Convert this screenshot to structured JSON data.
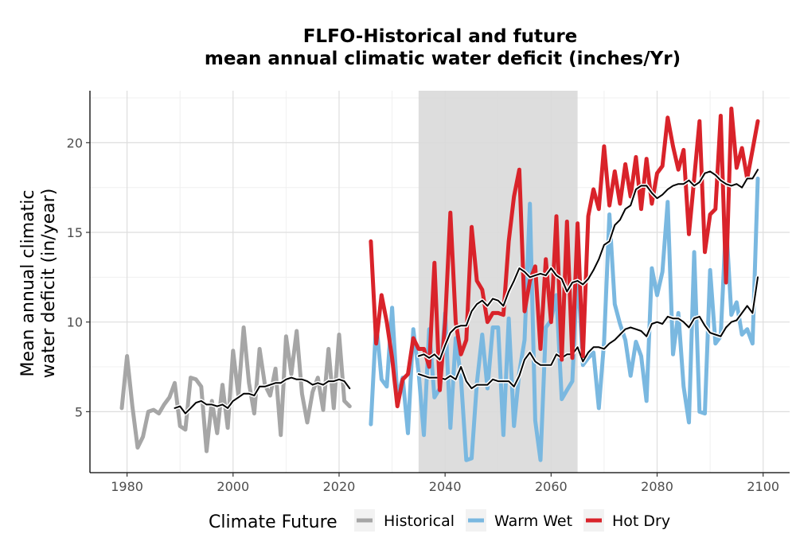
{
  "chart_data": {
    "type": "line",
    "title_lines": [
      "FLFO-Historical and future",
      "mean annual climatic water deficit (inches/Yr)"
    ],
    "ylabel_lines": [
      "Mean annual climatic",
      "water deficit (in/year)"
    ],
    "xlabel": "",
    "xlim": [
      1973,
      2105
    ],
    "ylim": [
      1.6,
      22.9
    ],
    "x_ticks": [
      1980,
      2000,
      2020,
      2040,
      2060,
      2080,
      2100
    ],
    "y_ticks": [
      5,
      10,
      15,
      20
    ],
    "grid": true,
    "shaded_period": [
      2035,
      2065
    ],
    "legend": {
      "title": "Climate Future",
      "position": "bottom",
      "items": [
        "Historical",
        "Warm Wet",
        "Hot Dry"
      ]
    },
    "series": [
      {
        "name": "Historical",
        "color": "#a6a6a6",
        "x": [
          1979,
          1980,
          1981,
          1982,
          1983,
          1984,
          1985,
          1986,
          1987,
          1988,
          1989,
          1990,
          1991,
          1992,
          1993,
          1994,
          1995,
          1996,
          1997,
          1998,
          1999,
          2000,
          2001,
          2002,
          2003,
          2004,
          2005,
          2006,
          2007,
          2008,
          2009,
          2010,
          2011,
          2012,
          2013,
          2014,
          2015,
          2016,
          2017,
          2018,
          2019,
          2020,
          2021,
          2022
        ],
        "values": [
          5.2,
          8.1,
          5.3,
          3.0,
          3.6,
          5.0,
          5.1,
          4.9,
          5.4,
          5.8,
          6.6,
          4.2,
          4.0,
          6.9,
          6.8,
          6.4,
          2.8,
          5.6,
          3.8,
          6.5,
          4.1,
          8.4,
          5.9,
          9.7,
          6.6,
          4.9,
          8.5,
          6.5,
          5.9,
          7.4,
          3.7,
          9.2,
          7.1,
          9.5,
          6.0,
          4.4,
          6.1,
          6.9,
          5.1,
          8.5,
          5.2,
          9.3,
          5.6,
          5.3
        ]
      },
      {
        "name": "Historical (rolling mean)",
        "color": "#000000",
        "x": [
          1989,
          1990,
          1991,
          1992,
          1993,
          1994,
          1995,
          1996,
          1997,
          1998,
          1999,
          2000,
          2001,
          2002,
          2003,
          2004,
          2005,
          2006,
          2007,
          2008,
          2009,
          2010,
          2011,
          2012,
          2013,
          2014,
          2015,
          2016,
          2017,
          2018,
          2019,
          2020,
          2021,
          2022
        ],
        "values": [
          5.2,
          5.3,
          4.9,
          5.2,
          5.5,
          5.6,
          5.4,
          5.4,
          5.3,
          5.4,
          5.2,
          5.6,
          5.8,
          6.0,
          6.0,
          5.9,
          6.4,
          6.4,
          6.5,
          6.6,
          6.6,
          6.8,
          6.9,
          6.8,
          6.8,
          6.7,
          6.5,
          6.6,
          6.5,
          6.7,
          6.7,
          6.8,
          6.7,
          6.3
        ]
      },
      {
        "name": "Warm Wet",
        "color": "#7ab8e0",
        "x": [
          2026,
          2027,
          2028,
          2029,
          2030,
          2031,
          2032,
          2033,
          2034,
          2035,
          2036,
          2037,
          2038,
          2039,
          2040,
          2041,
          2042,
          2043,
          2044,
          2045,
          2046,
          2047,
          2048,
          2049,
          2050,
          2051,
          2052,
          2053,
          2054,
          2055,
          2056,
          2057,
          2058,
          2059,
          2060,
          2061,
          2062,
          2063,
          2064,
          2065,
          2066,
          2067,
          2068,
          2069,
          2070,
          2071,
          2072,
          2073,
          2074,
          2075,
          2076,
          2077,
          2078,
          2079,
          2080,
          2081,
          2082,
          2083,
          2084,
          2085,
          2086,
          2087,
          2088,
          2089,
          2090,
          2091,
          2092,
          2093,
          2094,
          2095,
          2096,
          2097,
          2098,
          2099
        ],
        "values": [
          4.3,
          10.0,
          6.8,
          6.4,
          10.8,
          5.8,
          6.9,
          3.8,
          9.6,
          7.2,
          3.7,
          9.6,
          5.8,
          6.3,
          10.5,
          4.1,
          9.1,
          6.9,
          2.3,
          2.4,
          6.6,
          9.3,
          6.3,
          9.7,
          9.7,
          3.7,
          10.2,
          4.2,
          7.2,
          9.0,
          16.6,
          4.5,
          2.3,
          9.7,
          10.1,
          11.5,
          5.7,
          6.2,
          6.7,
          13.0,
          7.6,
          8.0,
          8.3,
          5.2,
          8.9,
          16.0,
          11.0,
          9.9,
          9.0,
          7.0,
          8.9,
          8.1,
          5.6,
          13.0,
          11.5,
          12.8,
          16.7,
          8.2,
          10.5,
          6.4,
          4.4,
          13.9,
          5.0,
          4.9,
          12.9,
          8.8,
          9.2,
          15.6,
          10.4,
          11.1,
          9.3,
          9.6,
          8.8,
          18.0
        ]
      },
      {
        "name": "Warm Wet (rolling mean)",
        "color": "#000000",
        "x": [
          2035,
          2036,
          2037,
          2038,
          2039,
          2040,
          2041,
          2042,
          2043,
          2044,
          2045,
          2046,
          2047,
          2048,
          2049,
          2050,
          2051,
          2052,
          2053,
          2054,
          2055,
          2056,
          2057,
          2058,
          2059,
          2060,
          2061,
          2062,
          2063,
          2064,
          2065,
          2066,
          2067,
          2068,
          2069,
          2070,
          2071,
          2072,
          2073,
          2074,
          2075,
          2076,
          2077,
          2078,
          2079,
          2080,
          2081,
          2082,
          2083,
          2084,
          2085,
          2086,
          2087,
          2088,
          2089,
          2090,
          2091,
          2092,
          2093,
          2094,
          2095,
          2096,
          2097,
          2098,
          2099
        ],
        "values": [
          7.1,
          7.0,
          6.9,
          6.9,
          6.9,
          6.8,
          7.0,
          6.8,
          7.5,
          6.7,
          6.3,
          6.5,
          6.5,
          6.5,
          6.8,
          6.7,
          6.7,
          6.7,
          6.4,
          7.0,
          7.9,
          8.3,
          7.8,
          7.6,
          7.6,
          7.6,
          8.2,
          8.0,
          8.2,
          8.2,
          8.6,
          7.8,
          8.3,
          8.6,
          8.6,
          8.5,
          8.8,
          9.0,
          9.3,
          9.6,
          9.7,
          9.6,
          9.5,
          9.2,
          9.9,
          10.0,
          9.9,
          10.3,
          10.2,
          10.2,
          10.0,
          9.7,
          10.2,
          10.3,
          9.8,
          9.4,
          9.3,
          9.2,
          9.7,
          10.0,
          10.1,
          10.5,
          10.9,
          10.5,
          12.5
        ]
      },
      {
        "name": "Hot Dry",
        "color": "#d9232a",
        "x": [
          2026,
          2027,
          2028,
          2029,
          2030,
          2031,
          2032,
          2033,
          2034,
          2035,
          2036,
          2037,
          2038,
          2039,
          2040,
          2041,
          2042,
          2043,
          2044,
          2045,
          2046,
          2047,
          2048,
          2049,
          2050,
          2051,
          2052,
          2053,
          2054,
          2055,
          2056,
          2057,
          2058,
          2059,
          2060,
          2061,
          2062,
          2063,
          2064,
          2065,
          2066,
          2067,
          2068,
          2069,
          2070,
          2071,
          2072,
          2073,
          2074,
          2075,
          2076,
          2077,
          2078,
          2079,
          2080,
          2081,
          2082,
          2083,
          2084,
          2085,
          2086,
          2087,
          2088,
          2089,
          2090,
          2091,
          2092,
          2093,
          2094,
          2095,
          2096,
          2097,
          2098,
          2099
        ],
        "values": [
          14.5,
          8.8,
          11.5,
          10.0,
          8.0,
          5.3,
          6.8,
          7.1,
          9.1,
          8.5,
          8.5,
          7.5,
          13.3,
          6.2,
          10.0,
          16.1,
          10.0,
          8.2,
          9.0,
          15.3,
          12.3,
          11.8,
          10.0,
          10.5,
          10.5,
          10.4,
          14.5,
          17.0,
          18.5,
          10.6,
          12.3,
          13.1,
          8.5,
          13.5,
          10.0,
          15.9,
          7.9,
          15.6,
          8.0,
          15.5,
          8.1,
          15.9,
          17.4,
          16.3,
          19.8,
          16.5,
          18.4,
          16.6,
          18.8,
          17.0,
          19.2,
          16.3,
          19.1,
          16.6,
          18.3,
          18.7,
          21.4,
          19.8,
          18.5,
          19.6,
          14.9,
          18.0,
          21.2,
          13.9,
          16.0,
          16.3,
          21.5,
          12.2,
          21.9,
          18.6,
          19.7,
          18.0,
          19.6,
          21.2
        ]
      },
      {
        "name": "Hot Dry (rolling mean)",
        "color": "#000000",
        "x": [
          2035,
          2036,
          2037,
          2038,
          2039,
          2040,
          2041,
          2042,
          2043,
          2044,
          2045,
          2046,
          2047,
          2048,
          2049,
          2050,
          2051,
          2052,
          2053,
          2054,
          2055,
          2056,
          2057,
          2058,
          2059,
          2060,
          2061,
          2062,
          2063,
          2064,
          2065,
          2066,
          2067,
          2068,
          2069,
          2070,
          2071,
          2072,
          2073,
          2074,
          2075,
          2076,
          2077,
          2078,
          2079,
          2080,
          2081,
          2082,
          2083,
          2084,
          2085,
          2086,
          2087,
          2088,
          2089,
          2090,
          2091,
          2092,
          2093,
          2094,
          2095,
          2096,
          2097,
          2098,
          2099
        ],
        "values": [
          8.1,
          8.2,
          8.0,
          8.2,
          7.9,
          8.7,
          9.4,
          9.7,
          9.8,
          9.8,
          10.6,
          11.0,
          11.2,
          10.9,
          11.3,
          11.2,
          10.9,
          11.7,
          12.3,
          13.0,
          12.8,
          12.5,
          12.6,
          12.7,
          12.6,
          13.0,
          12.6,
          12.4,
          11.7,
          12.2,
          12.3,
          12.1,
          12.4,
          12.9,
          13.5,
          14.3,
          14.5,
          15.4,
          15.7,
          16.3,
          16.5,
          17.4,
          17.6,
          17.6,
          17.2,
          16.9,
          17.1,
          17.4,
          17.6,
          17.7,
          17.7,
          17.9,
          17.6,
          17.8,
          18.3,
          18.4,
          18.2,
          17.9,
          17.7,
          17.6,
          17.7,
          17.5,
          18.0,
          18.0,
          18.5
        ]
      }
    ]
  }
}
